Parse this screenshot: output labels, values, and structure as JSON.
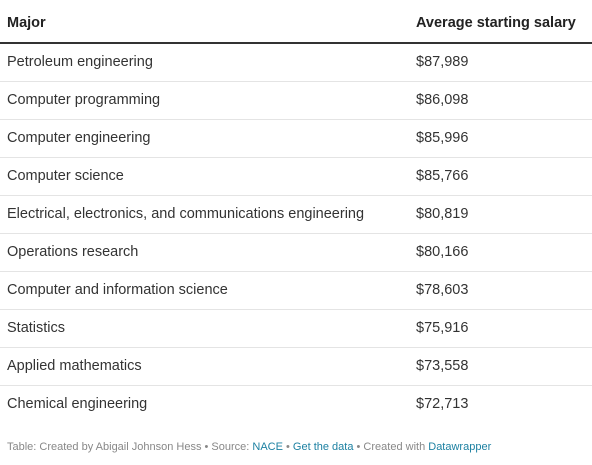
{
  "chart_data": {
    "type": "table",
    "columns": [
      "Major",
      "Average starting salary"
    ],
    "rows": [
      [
        "Petroleum engineering",
        "$87,989"
      ],
      [
        "Computer programming",
        "$86,098"
      ],
      [
        "Computer engineering",
        "$85,996"
      ],
      [
        "Computer science",
        "$85,766"
      ],
      [
        "Electrical, electronics, and communications engineering",
        "$80,819"
      ],
      [
        "Operations research",
        "$80,166"
      ],
      [
        "Computer and information science",
        "$78,603"
      ],
      [
        "Statistics",
        "$75,916"
      ],
      [
        "Applied mathematics",
        "$73,558"
      ],
      [
        "Chemical engineering",
        "$72,713"
      ]
    ]
  },
  "footer": {
    "prefix": "Table: Created by Abigail Johnson Hess • Source: ",
    "source_link": "NACE",
    "sep1": " • ",
    "data_link": "Get the data",
    "sep2": " • Created with ",
    "tool_link": "Datawrapper"
  }
}
